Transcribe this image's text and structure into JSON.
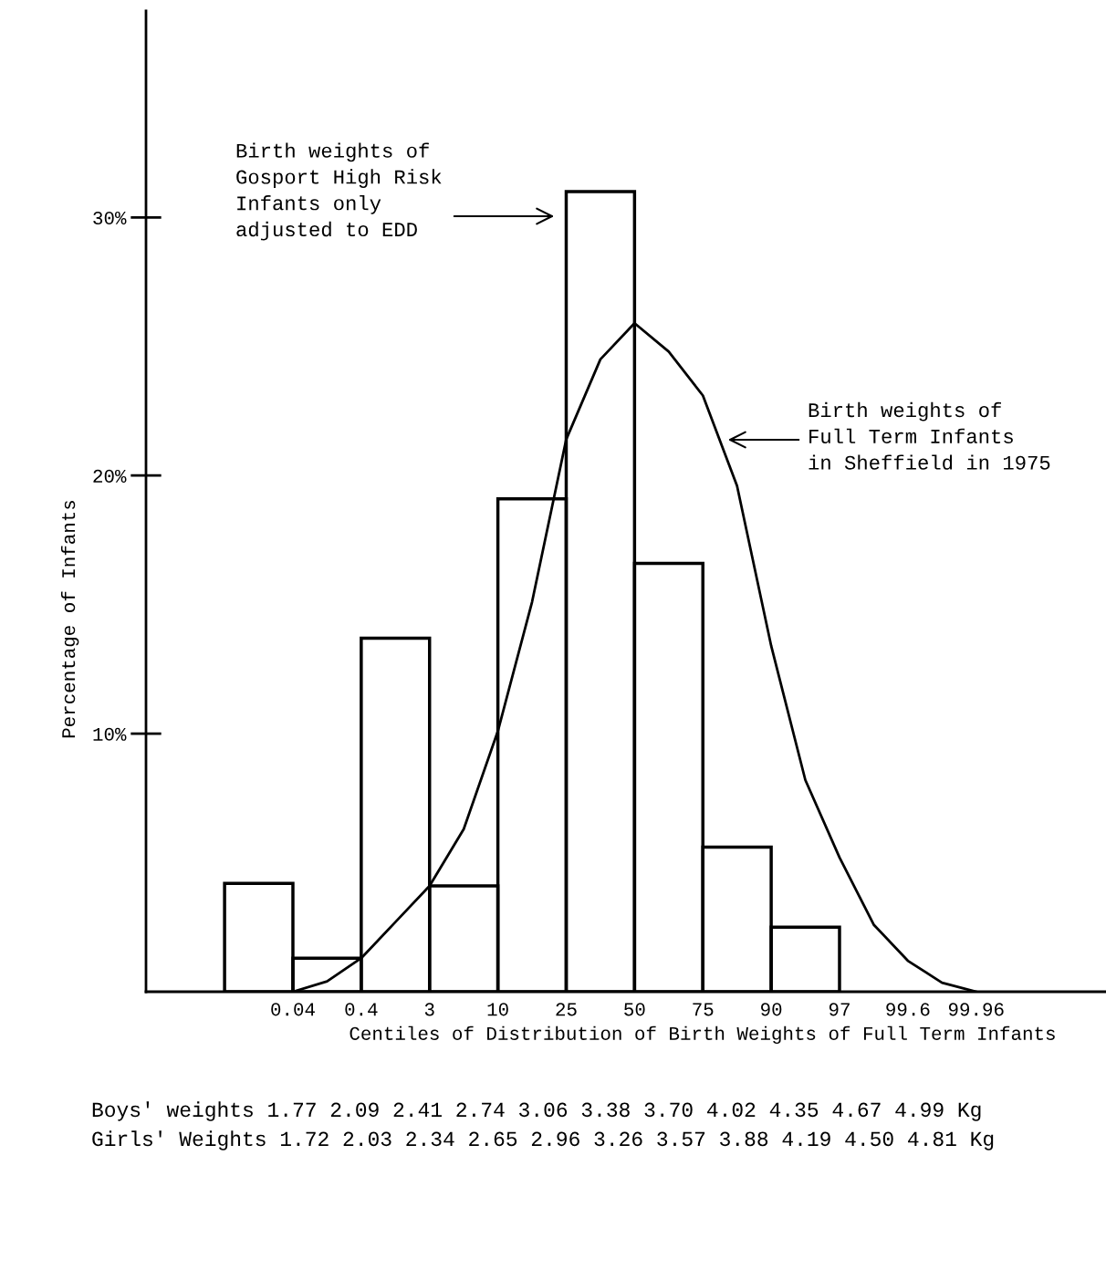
{
  "chart_data": {
    "type": "bar",
    "xlabel": "Centiles of Distribution of Birth Weights of Full Term Infants",
    "ylabel": "Percentage of Infants",
    "categories": [
      null,
      null,
      "0.04",
      null,
      "0.4",
      null,
      "3",
      null,
      "10",
      null,
      "25",
      null,
      "50",
      null,
      "75",
      null,
      "90",
      null,
      "97",
      null,
      "99.6",
      null,
      "99.96"
    ],
    "series": [
      {
        "color": "#000000",
        "values": [
          null,
          4.2,
          null,
          1.3,
          null,
          13.7,
          null,
          4.1,
          null,
          19.1,
          null,
          31.0,
          null,
          16.6,
          null,
          5.6,
          null,
          2.5,
          null,
          null,
          null,
          null,
          null
        ]
      },
      {
        "type": "line",
        "color": "#000000",
        "values": [
          null,
          null,
          0,
          0.4,
          1.3,
          2.7,
          4.1,
          6.3,
          10.1,
          15.1,
          21.4,
          24.5,
          25.9,
          24.8,
          23.1,
          19.6,
          13.4,
          8.2,
          5.2,
          2.6,
          1.2,
          0.35,
          0
        ]
      }
    ],
    "ylim": [
      0,
      38
    ],
    "yticks": [
      {
        "value": 10,
        "label": "10%"
      },
      {
        "value": 20,
        "label": "20%"
      },
      {
        "value": 30,
        "label": "30%"
      }
    ],
    "annotations": [
      "Birth weights of\nGosport High Risk\nInfants only\nadjusted to EDD",
      "Birth weights of\nFull Term Infants\nin Sheffield in 1975",
      "Boys' weights 1.77 2.09 2.41 2.74 3.06 3.38 3.70 4.02 4.35 4.67 4.99 Kg",
      "Girls' Weights 1.72 2.03 2.34 2.65 2.96 3.26 3.57 3.88 4.19 4.50 4.81 Kg"
    ]
  }
}
